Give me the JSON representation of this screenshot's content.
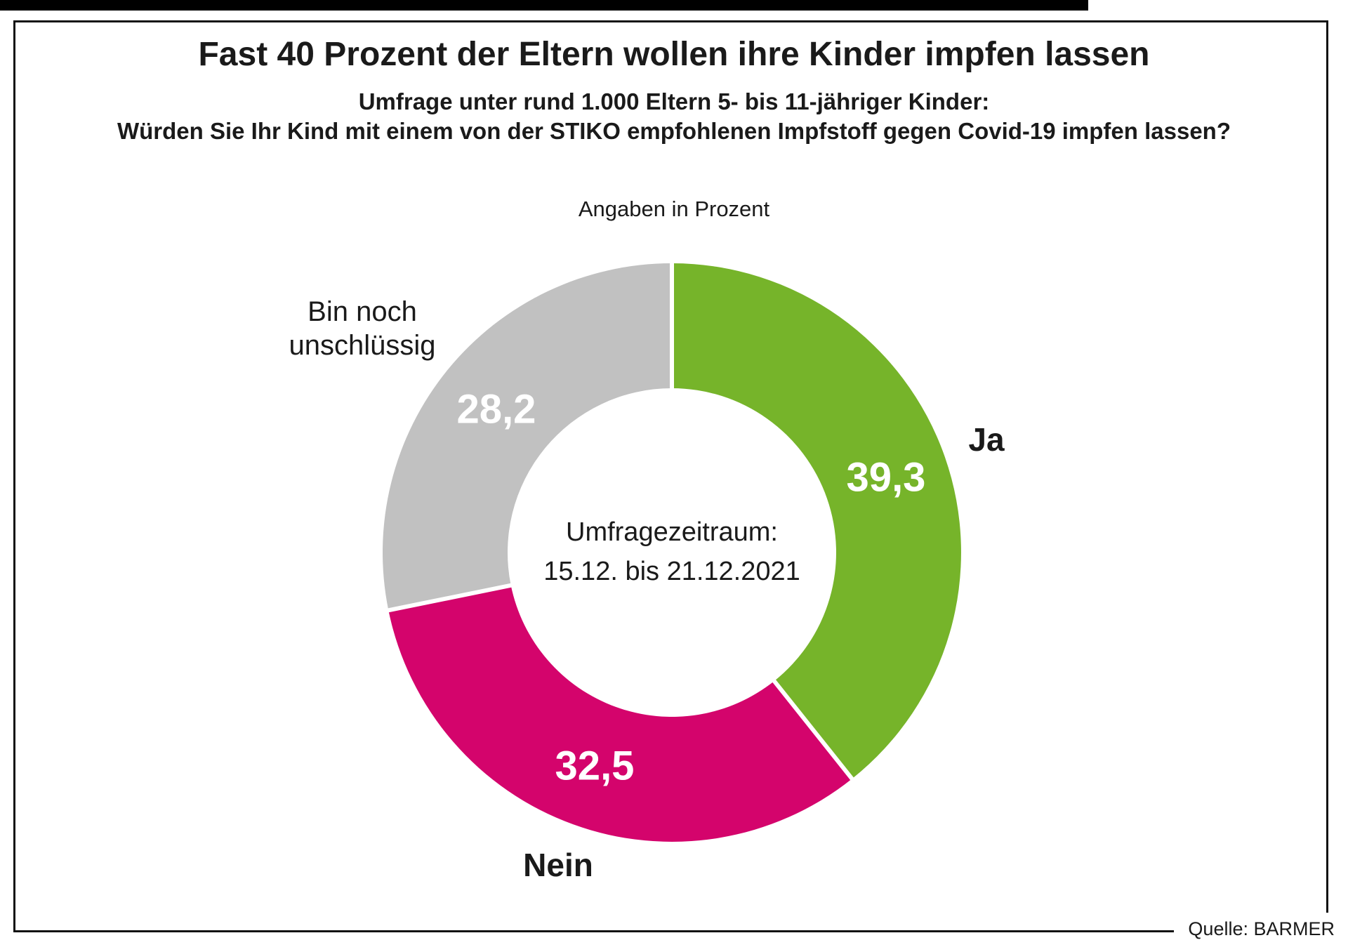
{
  "header": {
    "title": "Fast 40 Prozent der Eltern wollen ihre Kinder impfen lassen",
    "subtitle_line1": "Umfrage unter rund 1.000 Eltern 5- bis 11-jähriger Kinder:",
    "subtitle_line2": "Würden Sie Ihr Kind mit einem von der STIKO empfohlenen Impfstoff gegen Covid-19 impfen lassen?",
    "unit_note": "Angaben in Prozent"
  },
  "footer": {
    "source": "Quelle: BARMER"
  },
  "chart_data": {
    "type": "pie",
    "subtype": "donut",
    "title": "Fast 40 Prozent der Eltern wollen ihre Kinder impfen lassen",
    "question": "Würden Sie Ihr Kind mit einem von der STIKO empfohlenen Impfstoff gegen Covid-19 impfen lassen?",
    "unit": "Prozent",
    "survey_sample": "rund 1.000 Eltern 5- bis 11-jähriger Kinder",
    "start_angle_deg": 0,
    "direction": "clockwise",
    "total": 100,
    "segments": [
      {
        "label": "Ja",
        "value": 39.3,
        "display_value": "39,3",
        "color": "#76B42A"
      },
      {
        "label": "Nein",
        "value": 32.5,
        "display_value": "32,5",
        "color": "#D4046C"
      },
      {
        "label": "Bin noch unschlüssig",
        "label_lines": [
          "Bin noch",
          "unschlüssig"
        ],
        "value": 28.2,
        "display_value": "28,2",
        "color": "#C1C1C1"
      }
    ],
    "center_text": {
      "line1": "Umfragezeitraum:",
      "line2": "15.12. bis 21.12.2021"
    },
    "value_label_color": "#FFFFFF",
    "separator_color": "#FFFFFF",
    "legend": "none"
  }
}
